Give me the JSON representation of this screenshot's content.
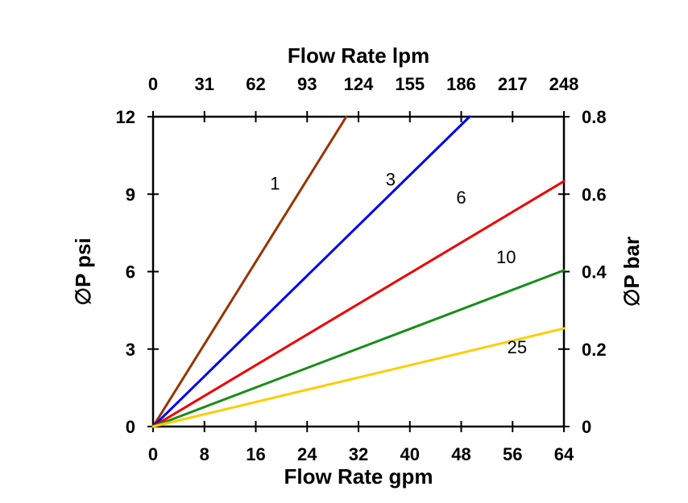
{
  "chart_data": {
    "type": "line",
    "title_top": "Flow Rate lpm",
    "xlabel_bottom": "Flow Rate gpm",
    "ylabel_left": "∅P psi",
    "ylabel_right": "∅P bar",
    "x_bottom_ticks": [
      0,
      8,
      16,
      24,
      32,
      40,
      48,
      56,
      64
    ],
    "x_top_ticks": [
      0,
      31,
      62,
      93,
      124,
      155,
      186,
      217,
      248
    ],
    "y_left_ticks": [
      0,
      3,
      6,
      9,
      12
    ],
    "y_right_ticks": [
      0,
      0.2,
      0.4,
      0.6,
      0.8
    ],
    "xlim": [
      0,
      64
    ],
    "ylim": [
      0,
      12
    ],
    "ylim_right": [
      0,
      0.8
    ],
    "grid": "off",
    "legend": "inline-labels",
    "axis_color": "#000000",
    "series": [
      {
        "name": "1",
        "color": "#993300",
        "points": [
          [
            0,
            0
          ],
          [
            30.1,
            12
          ]
        ],
        "label_at": [
          19.0,
          9.4
        ]
      },
      {
        "name": "3",
        "color": "#0000ee",
        "points": [
          [
            0,
            0
          ],
          [
            49.3,
            12
          ]
        ],
        "label_at": [
          37.0,
          9.55
        ]
      },
      {
        "name": "6",
        "color": "#ee0000",
        "points": [
          [
            0,
            0
          ],
          [
            64,
            9.5
          ]
        ],
        "label_at": [
          48.0,
          8.85
        ]
      },
      {
        "name": "10",
        "color": "#1a8c1a",
        "points": [
          [
            0,
            0
          ],
          [
            64,
            6.05
          ]
        ],
        "label_at": [
          55.0,
          6.55
        ]
      },
      {
        "name": "25",
        "color": "#ffcc00",
        "points": [
          [
            0,
            0
          ],
          [
            64,
            3.8
          ]
        ],
        "label_at": [
          56.7,
          3.05
        ]
      }
    ]
  }
}
